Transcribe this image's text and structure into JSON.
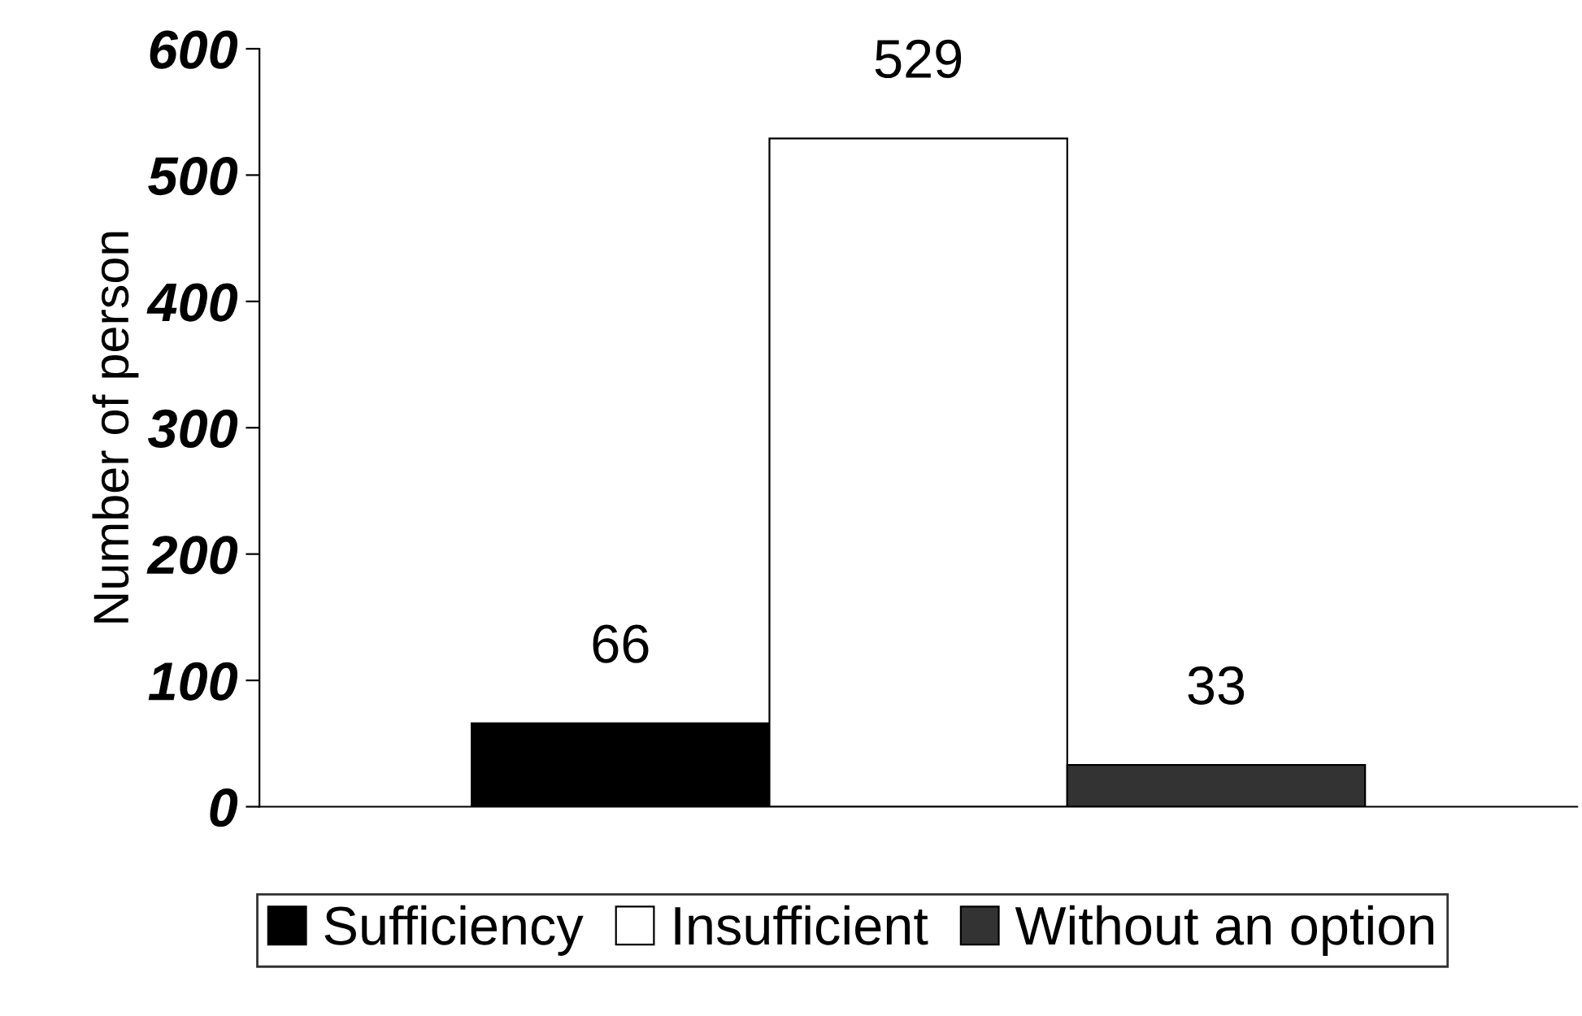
{
  "chart_data": {
    "type": "bar",
    "ylabel": "Number of person",
    "categories": [
      null
    ],
    "series": [
      {
        "name": "Sufficiency",
        "color": "#000000",
        "values": [
          66
        ]
      },
      {
        "name": "Insufficient",
        "color": "#ffffff",
        "values": [
          529
        ]
      },
      {
        "name": "Without an option",
        "color": "#333333",
        "values": [
          33
        ]
      }
    ],
    "ylim": [
      0,
      600
    ],
    "yticks": [
      0,
      100,
      200,
      300,
      400,
      500,
      600
    ],
    "data_labels": true,
    "grid": false,
    "legend": "bottom"
  }
}
